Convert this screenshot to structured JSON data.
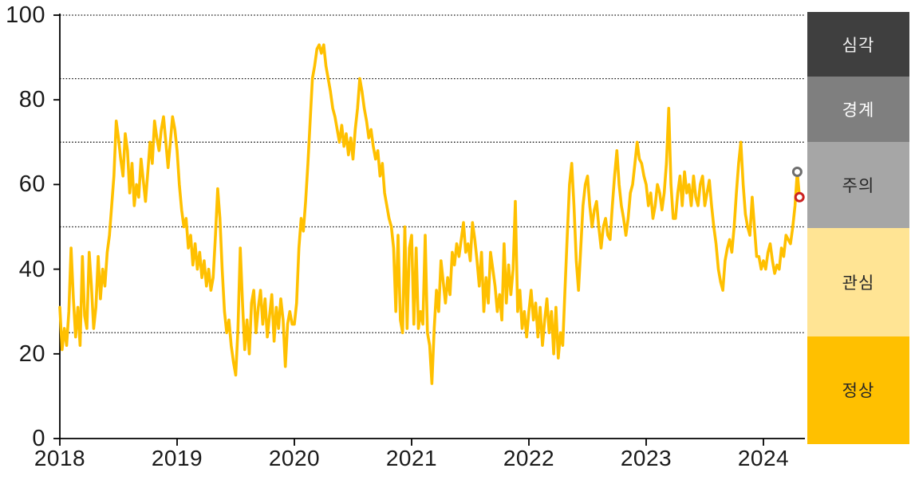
{
  "chart_data": {
    "type": "line",
    "title": "",
    "x_start_year": 2018,
    "points_per_year": 52,
    "values": [
      31,
      21,
      26,
      22,
      30,
      45,
      33,
      24,
      31,
      22,
      43,
      29,
      26,
      44,
      36,
      26,
      31,
      43,
      33,
      40,
      36,
      44,
      48,
      55,
      62,
      75,
      71,
      66,
      62,
      72,
      68,
      58,
      65,
      55,
      60,
      57,
      66,
      61,
      56,
      63,
      70,
      65,
      75,
      71,
      68,
      73,
      76,
      70,
      64,
      70,
      76,
      73,
      68,
      60,
      54,
      50,
      52,
      45,
      48,
      41,
      46,
      40,
      44,
      38,
      42,
      36,
      40,
      35,
      38,
      48,
      59,
      52,
      40,
      30,
      25,
      28,
      22,
      18,
      15,
      26,
      45,
      32,
      21,
      28,
      20,
      32,
      35,
      25,
      31,
      35,
      27,
      33,
      24,
      29,
      34,
      23,
      31,
      26,
      33,
      28,
      17,
      27,
      30,
      27,
      27,
      32,
      45,
      52,
      49,
      56,
      65,
      75,
      85,
      88,
      92,
      93,
      91,
      93,
      88,
      85,
      82,
      78,
      76,
      73,
      70,
      74,
      69,
      72,
      67,
      71,
      66,
      73,
      78,
      85,
      82,
      78,
      75,
      71,
      73,
      69,
      66,
      68,
      62,
      65,
      58,
      55,
      52,
      50,
      45,
      30,
      48,
      28,
      25,
      50,
      26,
      45,
      48,
      27,
      45,
      26,
      30,
      27,
      48,
      25,
      22,
      13,
      26,
      35,
      30,
      42,
      37,
      32,
      38,
      34,
      44,
      41,
      46,
      43,
      47,
      51,
      44,
      46,
      42,
      51,
      47,
      42,
      36,
      44,
      30,
      38,
      32,
      44,
      40,
      36,
      30,
      34,
      28,
      46,
      32,
      41,
      34,
      40,
      56,
      30,
      35,
      26,
      30,
      24,
      30,
      35,
      28,
      32,
      24,
      31,
      22,
      28,
      33,
      25,
      30,
      20,
      31,
      19,
      25,
      22,
      35,
      48,
      60,
      65,
      55,
      42,
      35,
      45,
      55,
      60,
      62,
      55,
      50,
      54,
      56,
      50,
      45,
      50,
      52,
      48,
      47,
      55,
      62,
      68,
      60,
      55,
      52,
      48,
      52,
      58,
      60,
      65,
      70,
      66,
      65,
      62,
      60,
      55,
      58,
      52,
      55,
      60,
      58,
      54,
      58,
      65,
      78,
      60,
      52,
      52,
      58,
      62,
      55,
      63,
      58,
      60,
      55,
      62,
      57,
      55,
      60,
      62,
      55,
      58,
      61,
      55,
      50,
      46,
      40,
      37,
      35,
      42,
      45,
      47,
      44,
      50,
      58,
      65,
      70,
      60,
      53,
      50,
      48,
      57,
      50,
      43,
      43,
      40,
      42,
      40,
      44,
      46,
      42,
      39,
      41,
      40,
      45,
      43,
      48,
      47,
      46,
      50,
      55,
      63,
      57
    ],
    "ylim": [
      0,
      100
    ],
    "y_ticks": [
      {
        "value": 0,
        "label": "0"
      },
      {
        "value": 20,
        "label": "20"
      },
      {
        "value": 40,
        "label": "40"
      },
      {
        "value": 60,
        "label": "60"
      },
      {
        "value": 80,
        "label": "80"
      },
      {
        "value": 100,
        "label": "100"
      }
    ],
    "x_ticks": [
      {
        "year": 2018,
        "label": "2018"
      },
      {
        "year": 2019,
        "label": "2019"
      },
      {
        "year": 2020,
        "label": "2020"
      },
      {
        "year": 2021,
        "label": "2021"
      },
      {
        "year": 2022,
        "label": "2022"
      },
      {
        "year": 2023,
        "label": "2023"
      },
      {
        "year": 2024,
        "label": "2024"
      }
    ],
    "gridline_values": [
      25,
      50,
      70,
      85,
      100
    ],
    "line_color": "#FFC000",
    "grid_color": "#1a1a1a",
    "axis_color": "#000000",
    "bands": [
      {
        "label": "심각",
        "from": 85,
        "to": 100,
        "color": "#3F3F3F",
        "text_color": "#F2F2F2"
      },
      {
        "label": "경계",
        "from": 70,
        "to": 85,
        "color": "#7F7F7F",
        "text_color": "#FFFFFF"
      },
      {
        "label": "주의",
        "from": 50,
        "to": 70,
        "color": "#A6A6A6",
        "text_color": "#262626"
      },
      {
        "label": "관심",
        "from": 25,
        "to": 50,
        "color": "#FFE494",
        "text_color": "#262626"
      },
      {
        "label": "정상",
        "from": 0,
        "to": 25,
        "color": "#FFC000",
        "text_color": "#262626"
      }
    ],
    "markers": [
      {
        "shape": "ring",
        "point_index": 327,
        "value": 63,
        "color": "#6E6E6E",
        "name": "gray-ring-marker"
      },
      {
        "shape": "ring",
        "point_index": 328,
        "value": 57,
        "color": "#CC2222",
        "name": "red-ring-marker"
      }
    ]
  }
}
